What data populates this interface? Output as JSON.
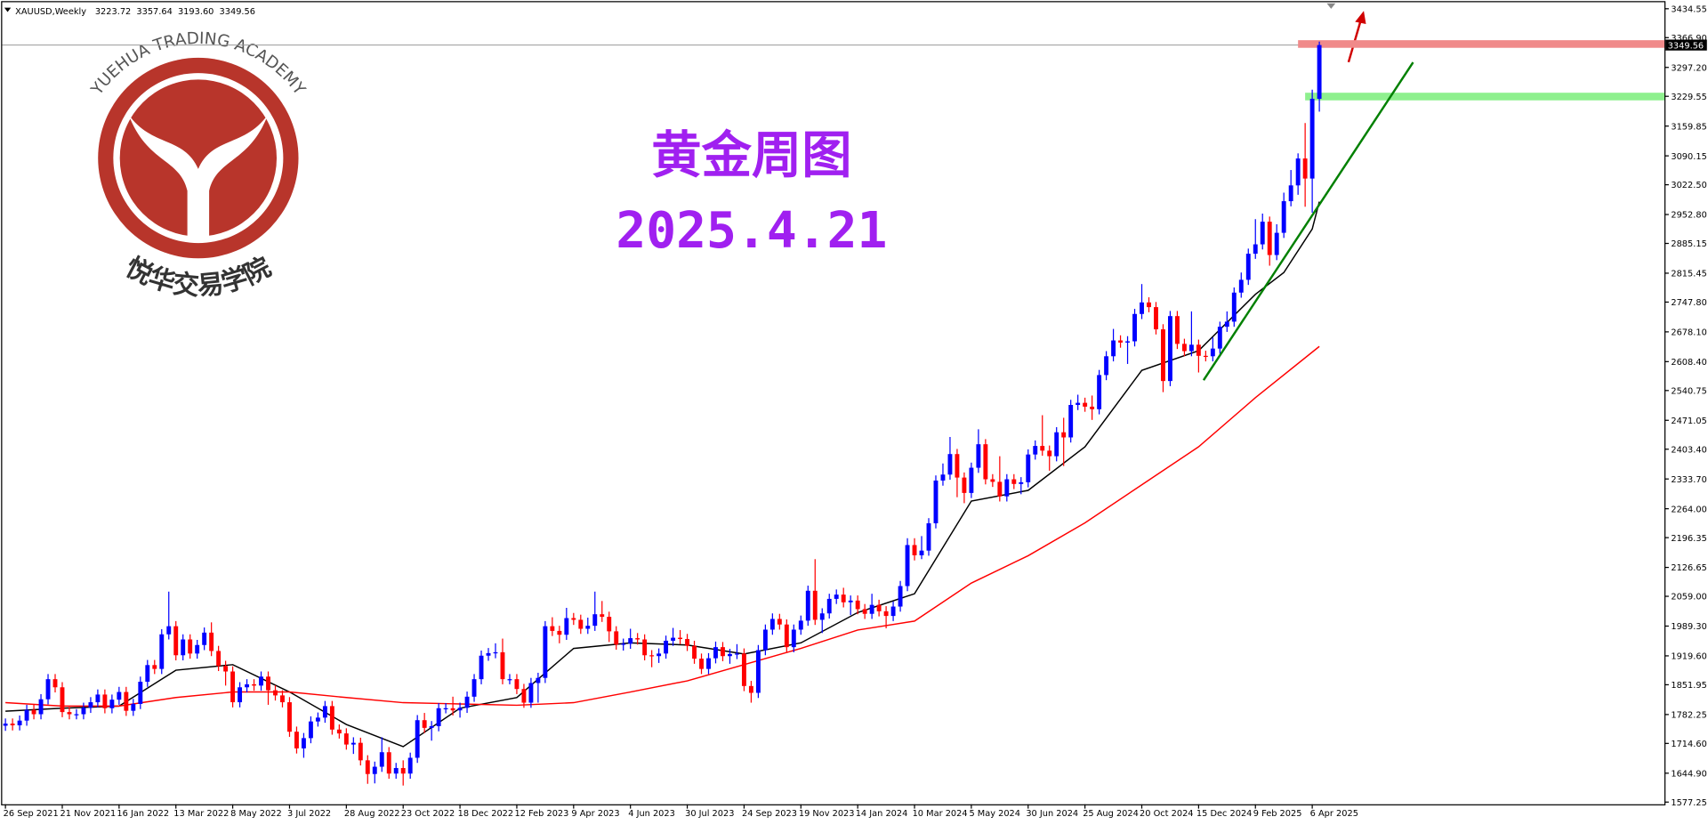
{
  "header": {
    "symbol": "XAUUSD,Weekly",
    "ohlc": [
      "3223.72",
      "3357.64",
      "3193.60",
      "3349.56"
    ]
  },
  "logo": {
    "en": "YUEHUA TRADING ACADEMY",
    "cn": "悦华交易学院"
  },
  "chart_data": {
    "type": "candlestick",
    "title": "黄金周图",
    "subtitle": "2025.4.21",
    "up_color": "#0000ff",
    "down_color": "#ff0000",
    "categories": [
      "26 Sep 2021",
      null,
      null,
      null,
      null,
      null,
      null,
      null,
      "21 Nov 2021",
      null,
      null,
      null,
      null,
      null,
      null,
      null,
      "16 Jan 2022",
      null,
      null,
      null,
      null,
      null,
      null,
      null,
      "13 Mar 2022",
      null,
      null,
      null,
      null,
      null,
      null,
      null,
      "8 May 2022",
      null,
      null,
      null,
      null,
      null,
      null,
      null,
      "3 Jul 2022",
      null,
      null,
      null,
      null,
      null,
      null,
      null,
      "28 Aug 2022",
      null,
      null,
      null,
      null,
      null,
      null,
      null,
      "23 Oct 2022",
      null,
      null,
      null,
      null,
      null,
      null,
      null,
      "18 Dec 2022",
      null,
      null,
      null,
      null,
      null,
      null,
      null,
      "12 Feb 2023",
      null,
      null,
      null,
      null,
      null,
      null,
      null,
      "9 Apr 2023",
      null,
      null,
      null,
      null,
      null,
      null,
      null,
      "4 Jun 2023",
      null,
      null,
      null,
      null,
      null,
      null,
      null,
      "30 Jul 2023",
      null,
      null,
      null,
      null,
      null,
      null,
      null,
      "24 Sep 2023",
      null,
      null,
      null,
      null,
      null,
      null,
      null,
      "19 Nov 2023",
      null,
      null,
      null,
      null,
      null,
      null,
      null,
      "14 Jan 2024",
      null,
      null,
      null,
      null,
      null,
      null,
      null,
      "10 Mar 2024",
      null,
      null,
      null,
      null,
      null,
      null,
      null,
      "5 May 2024",
      null,
      null,
      null,
      null,
      null,
      null,
      null,
      "30 Jun 2024",
      null,
      null,
      null,
      null,
      null,
      null,
      null,
      "25 Aug 2024",
      null,
      null,
      null,
      null,
      null,
      null,
      null,
      "20 Oct 2024",
      null,
      null,
      null,
      null,
      null,
      null,
      null,
      "15 Dec 2024",
      null,
      null,
      null,
      null,
      null,
      null,
      null,
      "9 Feb 2025",
      null,
      null,
      null,
      null,
      null,
      null,
      null,
      "6 Apr 2025",
      null
    ],
    "open": [
      1756,
      1761,
      1757,
      1768,
      1793,
      1783,
      1818,
      1865,
      1846,
      1788,
      1783,
      1783,
      1798,
      1811,
      1829,
      1797,
      1817,
      1835,
      1791,
      1807,
      1859,
      1898,
      1889,
      1970,
      1989,
      1921,
      1958,
      1925,
      1945,
      1974,
      1931,
      1896,
      1883,
      1811,
      1846,
      1853,
      1850,
      1871,
      1839,
      1827,
      1811,
      1742,
      1703,
      1727,
      1766,
      1775,
      1802,
      1747,
      1738,
      1712,
      1716,
      1675,
      1643,
      1660,
      1694,
      1644,
      1657,
      1644,
      1681,
      1769,
      1751,
      1755,
      1797,
      1797,
      1792,
      1798,
      1824,
      1865,
      1920,
      1926,
      1928,
      1865,
      1865,
      1842,
      1810,
      1856,
      1868,
      1989,
      1978,
      1969,
      2008,
      2004,
      1983,
      1990,
      2017,
      2011,
      1977,
      1946,
      1948,
      1961,
      1958,
      1921,
      1919,
      1925,
      1955,
      1962,
      1959,
      1943,
      1913,
      1889,
      1914,
      1940,
      1919,
      1924,
      1925,
      1849,
      1833,
      1933,
      1981,
      2006,
      1993,
      1940,
      1981,
      2002,
      2072,
      2004,
      2019,
      2053,
      2063,
      2045,
      2049,
      2029,
      2018,
      2039,
      2024,
      2013,
      2035,
      2083,
      2179,
      2155,
      2166,
      2230,
      2330,
      2344,
      2392,
      2337,
      2301,
      2360,
      2415,
      2333,
      2327,
      2293,
      2333,
      2322,
      2326,
      2391,
      2411,
      2400,
      2387,
      2443,
      2431,
      2507,
      2512,
      2503,
      2497,
      2577,
      2621,
      2658,
      2653,
      2656,
      2720,
      2747,
      2736,
      2684,
      2563,
      2715,
      2650,
      2633,
      2648,
      2622,
      2621,
      2639,
      2690,
      2702,
      2770,
      2800,
      2861,
      2883,
      2936,
      2858,
      2910,
      2984,
      3021,
      3084,
      3037,
      3223.72
    ],
    "high": [
      1773,
      1773,
      1780,
      1805,
      1805,
      1830,
      1877,
      1877,
      1858,
      1800,
      1795,
      1810,
      1823,
      1841,
      1841,
      1829,
      1847,
      1847,
      1819,
      1871,
      1910,
      1910,
      1982,
      2070,
      2001,
      1970,
      1970,
      1957,
      1986,
      1998,
      1943,
      1908,
      1895,
      1858,
      1865,
      1865,
      1883,
      1883,
      1851,
      1839,
      1823,
      1754,
      1739,
      1778,
      1787,
      1814,
      1814,
      1759,
      1750,
      1729,
      1728,
      1687,
      1672,
      1729,
      1706,
      1669,
      1675,
      1693,
      1781,
      1786,
      1767,
      1809,
      1809,
      1824,
      1810,
      1836,
      1877,
      1932,
      1938,
      1949,
      1960,
      1877,
      1877,
      1854,
      1868,
      1880,
      2001,
      2010,
      1990,
      2032,
      2020,
      2016,
      2009,
      2070,
      2048,
      2023,
      1989,
      1960,
      1983,
      1973,
      1970,
      1933,
      1937,
      1967,
      1985,
      1980,
      1971,
      1955,
      1925,
      1926,
      1953,
      1952,
      1936,
      1947,
      1937,
      1861,
      1945,
      1993,
      2019,
      2018,
      2005,
      1993,
      2014,
      2084,
      2146,
      2031,
      2065,
      2075,
      2079,
      2061,
      2061,
      2041,
      2065,
      2051,
      2036,
      2047,
      2095,
      2195,
      2195,
      2200,
      2242,
      2342,
      2370,
      2432,
      2404,
      2349,
      2372,
      2450,
      2427,
      2345,
      2387,
      2345,
      2345,
      2338,
      2403,
      2424,
      2483,
      2412,
      2455,
      2477,
      2519,
      2531,
      2524,
      2529,
      2589,
      2633,
      2685,
      2670,
      2668,
      2732,
      2790,
      2759,
      2748,
      2696,
      2727,
      2727,
      2662,
      2726,
      2660,
      2634,
      2665,
      2702,
      2726,
      2782,
      2817,
      2873,
      2942,
      2955,
      2948,
      2930,
      3004,
      3057,
      3096,
      3167,
      3245,
      3357.64
    ],
    "low": [
      1744,
      1745,
      1745,
      1756,
      1771,
      1771,
      1806,
      1834,
      1776,
      1771,
      1771,
      1771,
      1786,
      1799,
      1785,
      1785,
      1805,
      1779,
      1779,
      1795,
      1847,
      1877,
      1877,
      1958,
      1909,
      1909,
      1913,
      1913,
      1933,
      1919,
      1884,
      1850,
      1799,
      1799,
      1834,
      1838,
      1838,
      1805,
      1815,
      1799,
      1730,
      1691,
      1681,
      1715,
      1754,
      1763,
      1735,
      1726,
      1700,
      1690,
      1663,
      1620,
      1621,
      1648,
      1632,
      1632,
      1616,
      1632,
      1669,
      1739,
      1721,
      1743,
      1785,
      1780,
      1775,
      1786,
      1812,
      1853,
      1908,
      1914,
      1853,
      1853,
      1830,
      1798,
      1798,
      1810,
      1856,
      1966,
      1949,
      1957,
      1992,
      1971,
      1971,
      1978,
      1999,
      1952,
      1934,
      1932,
      1936,
      1946,
      1909,
      1893,
      1903,
      1913,
      1943,
      1947,
      1931,
      1901,
      1877,
      1877,
      1902,
      1907,
      1901,
      1912,
      1837,
      1810,
      1821,
      1921,
      1969,
      1981,
      1928,
      1928,
      1969,
      1990,
      1992,
      1973,
      2007,
      2041,
      2033,
      2015,
      2017,
      2006,
      2006,
      2012,
      1984,
      2001,
      2023,
      2071,
      2143,
      2146,
      2154,
      2218,
      2318,
      2332,
      2291,
      2277,
      2289,
      2348,
      2321,
      2315,
      2281,
      2281,
      2310,
      2298,
      2314,
      2379,
      2388,
      2353,
      2375,
      2364,
      2419,
      2495,
      2491,
      2472,
      2485,
      2565,
      2609,
      2641,
      2603,
      2644,
      2708,
      2724,
      2672,
      2537,
      2551,
      2638,
      2621,
      2621,
      2583,
      2609,
      2609,
      2627,
      2678,
      2690,
      2758,
      2788,
      2849,
      2871,
      2833,
      2846,
      2898,
      2972,
      2999,
      2971,
      2957,
      3193.6
    ],
    "close": [
      1761,
      1757,
      1768,
      1793,
      1783,
      1818,
      1865,
      1846,
      1788,
      1783,
      1783,
      1798,
      1811,
      1829,
      1797,
      1817,
      1835,
      1791,
      1807,
      1859,
      1898,
      1889,
      1970,
      1989,
      1921,
      1958,
      1925,
      1945,
      1974,
      1931,
      1896,
      1883,
      1811,
      1846,
      1853,
      1850,
      1871,
      1839,
      1827,
      1811,
      1742,
      1703,
      1727,
      1766,
      1775,
      1802,
      1747,
      1738,
      1712,
      1716,
      1675,
      1643,
      1660,
      1694,
      1644,
      1657,
      1644,
      1681,
      1769,
      1751,
      1755,
      1797,
      1797,
      1792,
      1798,
      1824,
      1865,
      1920,
      1926,
      1928,
      1865,
      1865,
      1842,
      1810,
      1856,
      1868,
      1989,
      1978,
      1969,
      2008,
      2004,
      1983,
      1990,
      2017,
      2011,
      1977,
      1946,
      1948,
      1961,
      1958,
      1921,
      1919,
      1925,
      1955,
      1962,
      1959,
      1943,
      1913,
      1889,
      1914,
      1940,
      1919,
      1924,
      1925,
      1849,
      1833,
      1933,
      1981,
      2006,
      1993,
      1940,
      1981,
      2002,
      2072,
      2004,
      2019,
      2053,
      2063,
      2045,
      2049,
      2029,
      2018,
      2039,
      2024,
      2013,
      2035,
      2083,
      2179,
      2155,
      2166,
      2230,
      2330,
      2344,
      2392,
      2337,
      2301,
      2360,
      2415,
      2333,
      2327,
      2293,
      2333,
      2322,
      2326,
      2391,
      2411,
      2400,
      2387,
      2443,
      2431,
      2507,
      2512,
      2503,
      2497,
      2577,
      2621,
      2658,
      2653,
      2656,
      2720,
      2747,
      2736,
      2684,
      2563,
      2715,
      2650,
      2633,
      2648,
      2622,
      2621,
      2639,
      2690,
      2702,
      2770,
      2800,
      2861,
      2883,
      2936,
      2858,
      2910,
      2984,
      3021,
      3084,
      3037,
      3223.72,
      3349.56
    ],
    "lines": [
      {
        "color": "#000000",
        "x": [
          0,
          8,
          16,
          24,
          32,
          40,
          48,
          56,
          64,
          72,
          80,
          88,
          96,
          104,
          112,
          120,
          128,
          136,
          144,
          152,
          160,
          168,
          176,
          180,
          184,
          185
        ],
        "values": [
          1790,
          1797,
          1802,
          1886,
          1899,
          1835,
          1759,
          1707,
          1797,
          1822,
          1937,
          1950,
          1945,
          1924,
          1950,
          2021,
          2065,
          2282,
          2307,
          2409,
          2588,
          2634,
          2766,
          2817,
          2919,
          2983
        ]
      },
      {
        "color": "#ff0000",
        "x": [
          0,
          8,
          16,
          24,
          32,
          40,
          48,
          56,
          64,
          72,
          80,
          88,
          96,
          104,
          112,
          120,
          128,
          136,
          144,
          152,
          160,
          168,
          176,
          185
        ],
        "values": [
          1810,
          1802,
          1802,
          1822,
          1835,
          1835,
          1822,
          1810,
          1807,
          1804,
          1810,
          1835,
          1861,
          1899,
          1937,
          1980,
          2001,
          2090,
          2154,
          2231,
          2320,
          2409,
          2524,
          2644
        ]
      }
    ],
    "zones": [
      {
        "value": 3352,
        "from": 182,
        "color": "#f08a8a"
      },
      {
        "value": 3229,
        "from": 183,
        "color": "#8ef08e"
      }
    ],
    "trendline": {
      "color": "#008000",
      "x": [
        168.7,
        198.2
      ],
      "y": [
        2565,
        3309
      ]
    },
    "ylim": [
      1572.15,
      3449.85
    ],
    "yticks": [
      3434.55,
      {
        "value": 3366.9,
        "label": "3366.90"
      },
      {
        "value": 3297.2,
        "label": "3297.20"
      },
      3229.55,
      3159.85,
      3090.15,
      {
        "value": 3022.5,
        "label": "3022.50"
      },
      {
        "value": 2952.8,
        "label": "2952.80"
      },
      2885.15,
      2815.45,
      {
        "value": 2747.8,
        "label": "2747.80"
      },
      {
        "value": 2678.1,
        "label": "2678.10"
      },
      {
        "value": 2608.4,
        "label": "2608.40"
      },
      2540.75,
      2471.05,
      {
        "value": 2403.4,
        "label": "2403.40"
      },
      {
        "value": 2333.7,
        "label": "2333.70"
      },
      {
        "value": 2264,
        "label": "2264.00"
      },
      2196.35,
      2126.65,
      {
        "value": 2059,
        "label": "2059.00"
      },
      {
        "value": 1989.3,
        "label": "1989.30"
      },
      {
        "value": 1919.6,
        "label": "1919.60"
      },
      1851.95,
      1782.25,
      {
        "value": 1714.6,
        "label": "1714.60"
      },
      {
        "value": 1644.9,
        "label": "1644.90"
      },
      1577.25
    ]
  }
}
